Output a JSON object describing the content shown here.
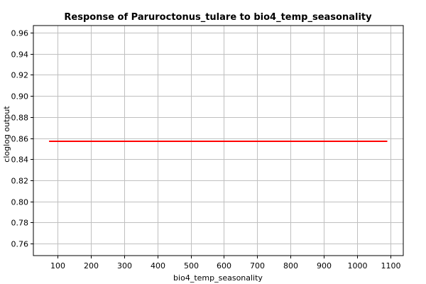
{
  "chart_data": {
    "type": "line",
    "title": "Response of Paruroctonus_tulare to bio4_temp_seasonality",
    "xlabel": "bio4_temp_seasonality",
    "ylabel": "cloglog output",
    "xlim": [
      28,
      1138
    ],
    "ylim": [
      0.7487,
      0.9667
    ],
    "xticks": [
      100,
      200,
      300,
      400,
      500,
      600,
      700,
      800,
      900,
      1000,
      1100
    ],
    "yticks": [
      0.76,
      0.78,
      0.8,
      0.82,
      0.84,
      0.86,
      0.88,
      0.9,
      0.92,
      0.94,
      0.96
    ],
    "ytick_labels": [
      "0.76",
      "0.78",
      "0.80",
      "0.82",
      "0.84",
      "0.86",
      "0.88",
      "0.90",
      "0.92",
      "0.94",
      "0.96"
    ],
    "grid": true,
    "series": [
      {
        "color": "#ff0000",
        "x": [
          75,
          1090
        ],
        "y": [
          0.857,
          0.857
        ]
      }
    ]
  }
}
